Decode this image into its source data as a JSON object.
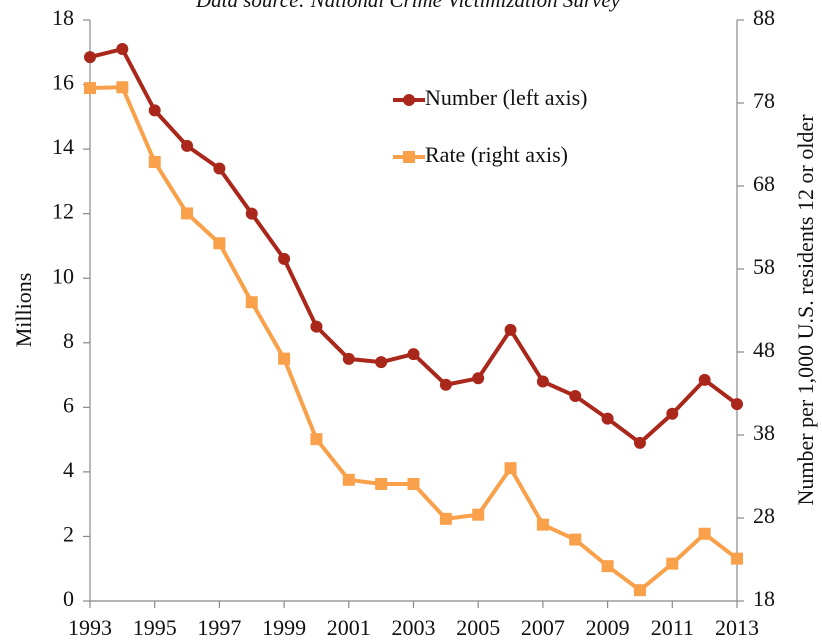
{
  "chart_data": {
    "type": "line",
    "title": "Data source: National Crime Victimization Survey",
    "ylabel": "Millions",
    "y2label": "Number per 1,000 U.S. residents 12 or older",
    "x": [
      1993,
      1994,
      1995,
      1996,
      1997,
      1998,
      1999,
      2000,
      2001,
      2002,
      2003,
      2004,
      2005,
      2006,
      2007,
      2008,
      2009,
      2010,
      2011,
      2012,
      2013
    ],
    "xlim": [
      1993,
      2013
    ],
    "xticks": [
      1993,
      1995,
      1997,
      1999,
      2001,
      2003,
      2005,
      2007,
      2009,
      2011,
      2013
    ],
    "ylim": [
      0,
      18
    ],
    "yticks": [
      0,
      2,
      4,
      6,
      8,
      10,
      12,
      14,
      16,
      18
    ],
    "y2lim": [
      18,
      88
    ],
    "y2ticks": [
      18,
      28,
      38,
      48,
      58,
      68,
      78,
      88
    ],
    "series": [
      {
        "name": "Number (left axis)",
        "color": "#a9271b",
        "marker": "circle",
        "axis": "y",
        "values": [
          16.85,
          17.1,
          15.2,
          14.1,
          13.4,
          12.0,
          10.6,
          8.5,
          7.5,
          7.4,
          7.65,
          6.7,
          6.9,
          8.4,
          6.8,
          6.35,
          5.65,
          4.9,
          5.8,
          6.85,
          6.1
        ]
      },
      {
        "name": "Rate (right axis)",
        "color": "#f9a04b",
        "marker": "square",
        "axis": "y2",
        "values": [
          79.8,
          79.9,
          70.9,
          64.7,
          61.1,
          54.0,
          47.2,
          37.5,
          32.6,
          32.1,
          32.1,
          27.9,
          28.4,
          34.0,
          27.2,
          25.4,
          22.2,
          19.3,
          22.5,
          26.1,
          23.1
        ]
      }
    ]
  }
}
